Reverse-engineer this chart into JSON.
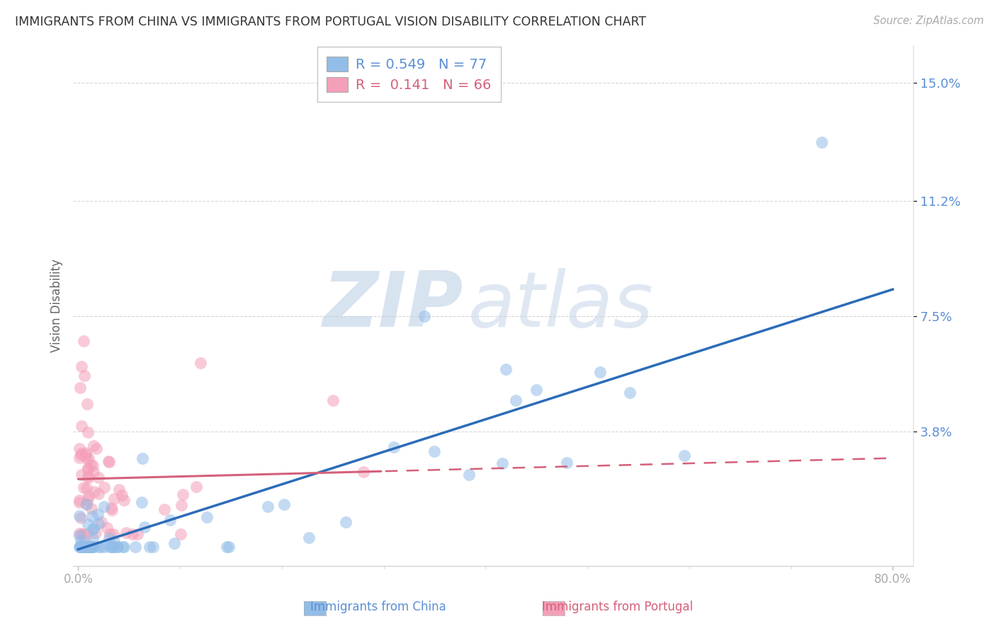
{
  "title": "IMMIGRANTS FROM CHINA VS IMMIGRANTS FROM PORTUGAL VISION DISABILITY CORRELATION CHART",
  "source": "Source: ZipAtlas.com",
  "xlabel_china": "Immigrants from China",
  "xlabel_portugal": "Immigrants from Portugal",
  "ylabel": "Vision Disability",
  "watermark_zip": "ZIP",
  "watermark_atlas": "atlas",
  "xlim": [
    -0.005,
    0.82
  ],
  "ylim": [
    -0.005,
    0.162
  ],
  "yticks": [
    0.038,
    0.075,
    0.112,
    0.15
  ],
  "ytick_labels": [
    "3.8%",
    "7.5%",
    "11.2%",
    "15.0%"
  ],
  "xtick_vals": [
    0.0,
    0.8
  ],
  "xtick_labels": [
    "0.0%",
    "80.0%"
  ],
  "r_china": 0.549,
  "n_china": 77,
  "r_portugal": 0.141,
  "n_portugal": 66,
  "color_china": "#92BDE8",
  "color_portugal": "#F4A0B8",
  "line_color_china": "#2B6CB8",
  "line_color_portugal": "#D4607A",
  "background_color": "#FFFFFF",
  "grid_color": "#CCCCCC",
  "title_color": "#333333",
  "axis_label_color": "#5B8FD4",
  "right_label_color": "#5B8FD4",
  "watermark_color": "#C8D8F0"
}
